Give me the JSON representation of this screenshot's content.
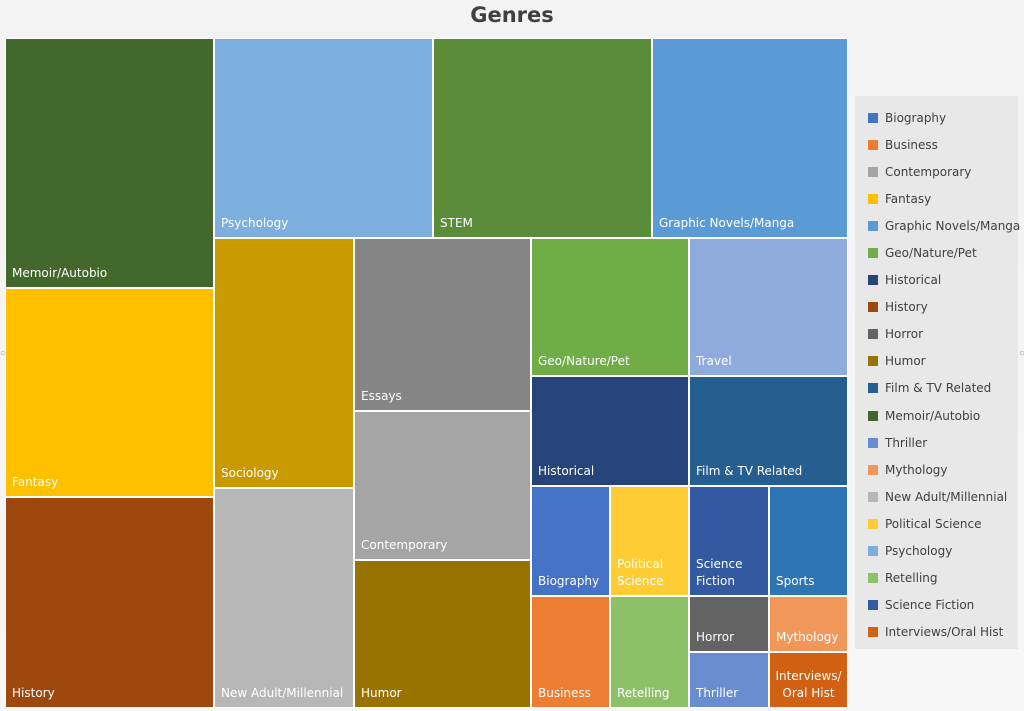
{
  "chart_data": {
    "type": "treemap",
    "title": "Genres",
    "legend_position": "right",
    "legend": [
      {
        "name": "Biography",
        "color": "#4472c4"
      },
      {
        "name": "Business",
        "color": "#ed7d31"
      },
      {
        "name": "Contemporary",
        "color": "#a5a5a5"
      },
      {
        "name": "Fantasy",
        "color": "#ffc000"
      },
      {
        "name": "Graphic Novels/Manga",
        "color": "#5b9bd5"
      },
      {
        "name": "Geo/Nature/Pet",
        "color": "#70ad47"
      },
      {
        "name": "Historical",
        "color": "#264478"
      },
      {
        "name": "History",
        "color": "#9e480e"
      },
      {
        "name": "Horror",
        "color": "#636363"
      },
      {
        "name": "Humor",
        "color": "#997300"
      },
      {
        "name": "Film & TV Related",
        "color": "#255e91"
      },
      {
        "name": "Memoir/Autobio",
        "color": "#43682b"
      },
      {
        "name": "Thriller",
        "color": "#698ed0"
      },
      {
        "name": "Mythology",
        "color": "#f1975a"
      },
      {
        "name": "New Adult/Millennial",
        "color": "#b7b7b7"
      },
      {
        "name": "Political Science",
        "color": "#ffcd33"
      },
      {
        "name": "Psychology",
        "color": "#7cafdd"
      },
      {
        "name": "Retelling",
        "color": "#8cc168"
      },
      {
        "name": "Science Fiction",
        "color": "#335aa1"
      },
      {
        "name": "Interviews/Oral Hist",
        "color": "#d26012"
      }
    ],
    "tiles": [
      {
        "name": "Memoir/Autobio",
        "label": "Memoir/Autobio",
        "color": "#43682b",
        "value": 52.3
      },
      {
        "name": "Fantasy",
        "label": "Fantasy",
        "color": "#ffc000",
        "value": 43.6
      },
      {
        "name": "History",
        "label": "History",
        "color": "#9e480e",
        "value": 43.6
      },
      {
        "name": "Psychology",
        "label": "Psychology",
        "color": "#7cafdd",
        "value": 43.6
      },
      {
        "name": "STEM",
        "label": "STEM",
        "color": "#5b8c3a",
        "value": 43.6
      },
      {
        "name": "Graphic Novels/Manga",
        "label": "Graphic Novels/Manga",
        "color": "#5b9bd5",
        "value": 41.6
      },
      {
        "name": "Sociology",
        "label": "Sociology",
        "color": "#c99a00",
        "value": 35.1
      },
      {
        "name": "New Adult/Millennial",
        "label": "New Adult/Millennial",
        "color": "#b7b7b7",
        "value": 30.0
      },
      {
        "name": "Essays",
        "label": "Essays",
        "color": "#858585",
        "value": 30.5
      },
      {
        "name": "Contemporary",
        "label": "Contemporary",
        "color": "#a5a5a5",
        "value": 26.4
      },
      {
        "name": "Humor",
        "label": "Humor",
        "color": "#997300",
        "value": 26.1
      },
      {
        "name": "Geo/Nature/Pet",
        "label": "Geo/Nature/Pet",
        "color": "#70ad47",
        "value": 21.8
      },
      {
        "name": "Travel",
        "label": "Travel",
        "color": "#8faadc",
        "value": 21.8
      },
      {
        "name": "Historical",
        "label": "Historical",
        "color": "#264478",
        "value": 17.2
      },
      {
        "name": "Film & TV Related",
        "label": "Film & TV Related",
        "color": "#255e91",
        "value": 17.2
      },
      {
        "name": "Biography",
        "label": "Biography",
        "color": "#4472c4",
        "value": 8.8
      },
      {
        "name": "Political Science",
        "label": "Political\nScience",
        "color": "#ffcd33",
        "value": 8.8
      },
      {
        "name": "Science Fiction",
        "label": "Science\nFiction",
        "color": "#335aa1",
        "value": 8.8
      },
      {
        "name": "Sports",
        "label": "Sports",
        "color": "#2e75b6",
        "value": 8.8
      },
      {
        "name": "Business",
        "label": "Business",
        "color": "#ed7d31",
        "value": 8.8
      },
      {
        "name": "Retelling",
        "label": "Retelling",
        "color": "#8cc168",
        "value": 8.8
      },
      {
        "name": "Horror",
        "label": "Horror",
        "color": "#636363",
        "value": 4.4
      },
      {
        "name": "Mythology",
        "label": "Mythology",
        "color": "#f1975a",
        "value": 4.4
      },
      {
        "name": "Thriller",
        "label": "Thriller",
        "color": "#698ed0",
        "value": 4.4
      },
      {
        "name": "Interviews/Oral Hist",
        "label": "Interviews/\nOral Hist",
        "color": "#d26012",
        "value": 4.4
      }
    ]
  }
}
